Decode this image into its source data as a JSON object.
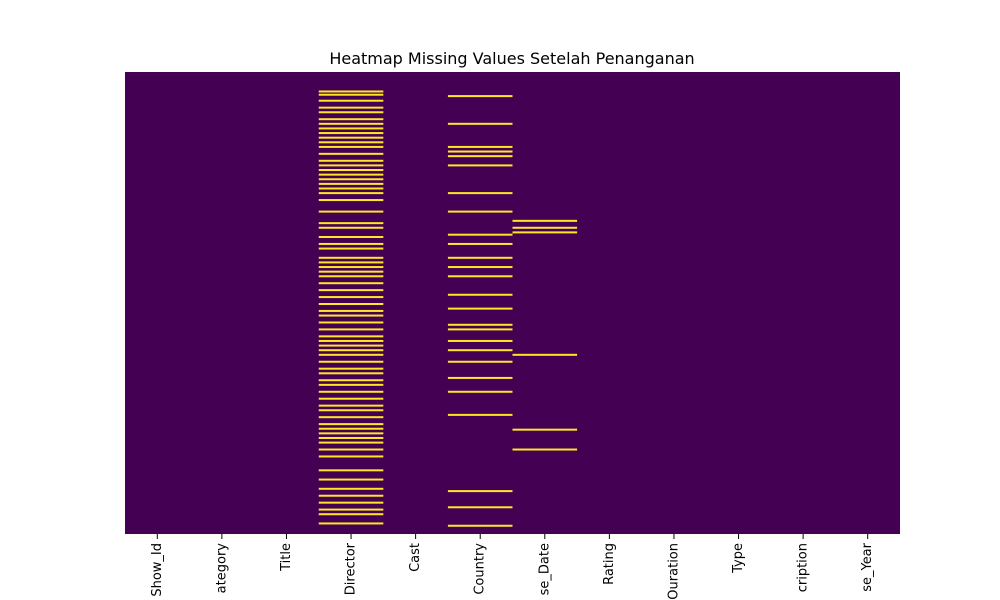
{
  "chart_data": {
    "type": "heatmap",
    "title": "Heatmap Missing Values Setelah Penanganan",
    "colormap": {
      "present": "#440154",
      "missing": "#fde725"
    },
    "columns": [
      "Show_Id",
      "Category",
      "Title",
      "Director",
      "Cast",
      "Country",
      "Release_Date",
      "Rating",
      "Duration",
      "Type",
      "Description",
      "Release_Year"
    ],
    "column_tick_labels": [
      "Show_Id",
      "ategory",
      "Title",
      "Director",
      "Cast",
      "Country",
      "se_Date",
      "Rating",
      "Ouration",
      "Type",
      "cription",
      "se_Year"
    ],
    "colorbar": false,
    "row_range": [
      0,
      1
    ],
    "missing_rows": {
      "Director": [
        0.04,
        0.047,
        0.06,
        0.075,
        0.085,
        0.1,
        0.11,
        0.12,
        0.13,
        0.14,
        0.15,
        0.16,
        0.175,
        0.19,
        0.2,
        0.21,
        0.22,
        0.23,
        0.24,
        0.25,
        0.26,
        0.275,
        0.3,
        0.325,
        0.335,
        0.355,
        0.37,
        0.38,
        0.4,
        0.41,
        0.42,
        0.43,
        0.44,
        0.455,
        0.47,
        0.485,
        0.5,
        0.515,
        0.525,
        0.54,
        0.555,
        0.57,
        0.58,
        0.59,
        0.6,
        0.61,
        0.625,
        0.64,
        0.65,
        0.665,
        0.675,
        0.69,
        0.705,
        0.72,
        0.73,
        0.745,
        0.76,
        0.77,
        0.78,
        0.79,
        0.8,
        0.815,
        0.83,
        0.86,
        0.88,
        0.9,
        0.915,
        0.93,
        0.945,
        0.955,
        0.975
      ],
      "Country": [
        0.05,
        0.11,
        0.16,
        0.17,
        0.18,
        0.2,
        0.26,
        0.3,
        0.35,
        0.37,
        0.4,
        0.42,
        0.44,
        0.48,
        0.51,
        0.545,
        0.555,
        0.58,
        0.6,
        0.625,
        0.66,
        0.69,
        0.74,
        0.905,
        0.94,
        0.98
      ],
      "Release_Date": [
        0.32,
        0.335,
        0.345,
        0.61,
        0.772,
        0.815
      ]
    }
  }
}
